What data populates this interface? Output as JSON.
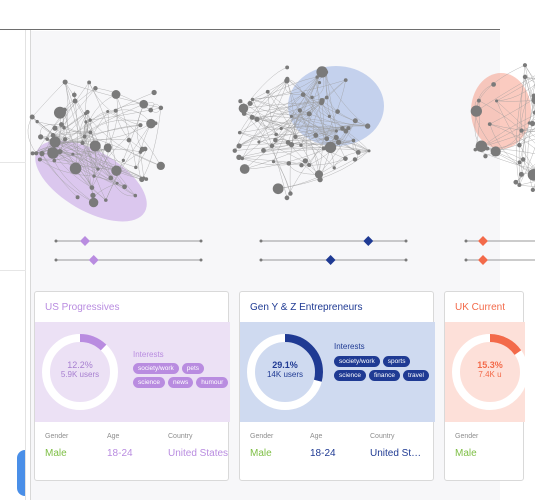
{
  "colors": {
    "purple": "#b98ce0",
    "purple_light": "#ece1f5",
    "purple_dark": "#a77fd0",
    "blue": "#1f3a93",
    "blue_light": "#cfdaf0",
    "orange": "#f36a4a",
    "orange_light": "#fde0d9",
    "green": "#7ebf45",
    "node": "#7a7a7a"
  },
  "cards": [
    {
      "title": "US Progressives",
      "percent": "12.2%",
      "users": "5.9K users",
      "percent_value": 12.2,
      "interests_label": "Interests",
      "interests": [
        "society/work",
        "pets",
        "science",
        "news",
        "humour"
      ],
      "gender_label": "Gender",
      "age_label": "Age",
      "country_label": "Country",
      "gender": "Male",
      "age": "18-24",
      "country": "United States"
    },
    {
      "title": "Gen Y & Z Entrepreneurs",
      "percent": "29.1%",
      "users": "14K users",
      "percent_value": 29.1,
      "interests_label": "Interests",
      "interests": [
        "society/work",
        "sports",
        "science",
        "finance",
        "travel"
      ],
      "gender_label": "Gender",
      "age_label": "Age",
      "country_label": "Country",
      "gender": "Male",
      "age": "18-24",
      "country": "United St…"
    },
    {
      "title": "UK Current",
      "percent": "15.3%",
      "users": "7.4K u",
      "percent_value": 15.3,
      "gender_label": "Gender",
      "gender": "Male"
    }
  ],
  "sliders": [
    {
      "top_value": 0.2,
      "bottom_value": 0.26
    },
    {
      "top_value": 0.74,
      "bottom_value": 0.48
    },
    {
      "top_value": 0.2,
      "bottom_value": 0.2
    }
  ]
}
